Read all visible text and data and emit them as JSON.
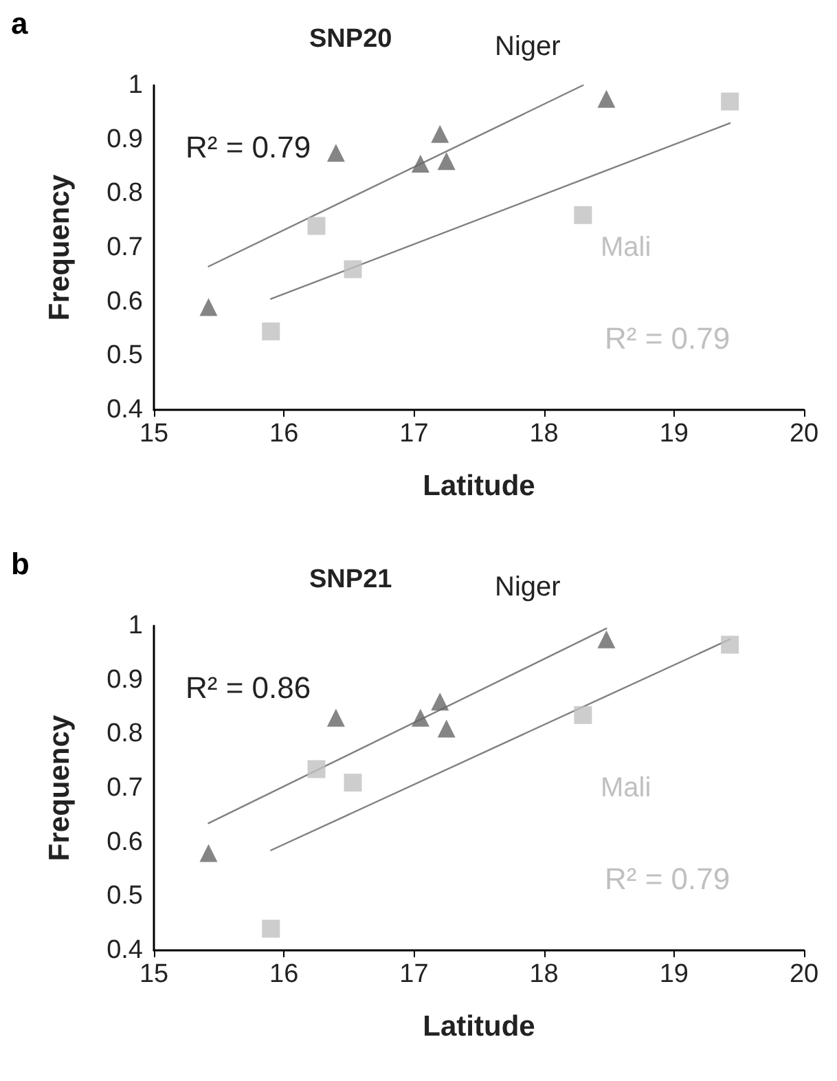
{
  "chart_data": [
    {
      "type": "scatter",
      "title": "SNP20",
      "xlabel": "Latitude",
      "ylabel": "Frequency",
      "annotations": [
        "a",
        "R² = 0.79",
        "R² = 0.79"
      ],
      "xlim": [
        15,
        20
      ],
      "xticks": [
        15,
        16,
        17,
        18,
        19,
        20
      ],
      "ylim": [
        0.4,
        1
      ],
      "yticks": [
        0.4,
        0.5,
        0.6,
        0.7,
        0.8,
        0.9,
        1
      ],
      "grid": false,
      "series": [
        {
          "name": "Niger",
          "color": "#666666",
          "marker": "triangle",
          "x": [
            15.42,
            16.4,
            17.05,
            17.2,
            17.25,
            18.48
          ],
          "values": [
            0.59,
            0.875,
            0.855,
            0.91,
            0.86,
            0.975
          ]
        },
        {
          "name": "Mali",
          "color": "#c0c0c0",
          "marker": "square",
          "x": [
            15.9,
            16.25,
            16.53,
            18.3,
            19.43
          ],
          "values": [
            0.545,
            0.74,
            0.66,
            0.76,
            0.97
          ]
        },
        {
          "type": "line",
          "color": "#808080",
          "marker": "none",
          "x": [
            15.42,
            18.3
          ],
          "values": [
            0.665,
            1.0
          ]
        },
        {
          "type": "line",
          "color": "#808080",
          "marker": "none",
          "x": [
            15.9,
            19.43
          ],
          "values": [
            0.605,
            0.93
          ]
        }
      ]
    },
    {
      "type": "scatter",
      "title": "SNP21",
      "xlabel": "Latitude",
      "ylabel": "Frequency",
      "annotations": [
        "b",
        "R² = 0.86",
        "R² = 0.79"
      ],
      "xlim": [
        15,
        20
      ],
      "xticks": [
        15,
        16,
        17,
        18,
        19,
        20
      ],
      "ylim": [
        0.4,
        1
      ],
      "yticks": [
        0.4,
        0.5,
        0.6,
        0.7,
        0.8,
        0.9,
        1
      ],
      "grid": false,
      "series": [
        {
          "name": "Niger",
          "color": "#666666",
          "marker": "triangle",
          "x": [
            15.42,
            16.4,
            17.05,
            17.2,
            17.25,
            18.48
          ],
          "values": [
            0.58,
            0.83,
            0.83,
            0.86,
            0.81,
            0.975
          ]
        },
        {
          "name": "Mali",
          "color": "#c0c0c0",
          "marker": "square",
          "x": [
            15.9,
            16.25,
            16.53,
            18.3,
            19.43
          ],
          "values": [
            0.44,
            0.735,
            0.71,
            0.835,
            0.965
          ]
        },
        {
          "type": "line",
          "color": "#808080",
          "marker": "none",
          "x": [
            15.42,
            18.48
          ],
          "values": [
            0.635,
            0.995
          ]
        },
        {
          "type": "line",
          "color": "#808080",
          "marker": "none",
          "x": [
            15.9,
            19.43
          ],
          "values": [
            0.585,
            0.975
          ]
        }
      ]
    }
  ]
}
